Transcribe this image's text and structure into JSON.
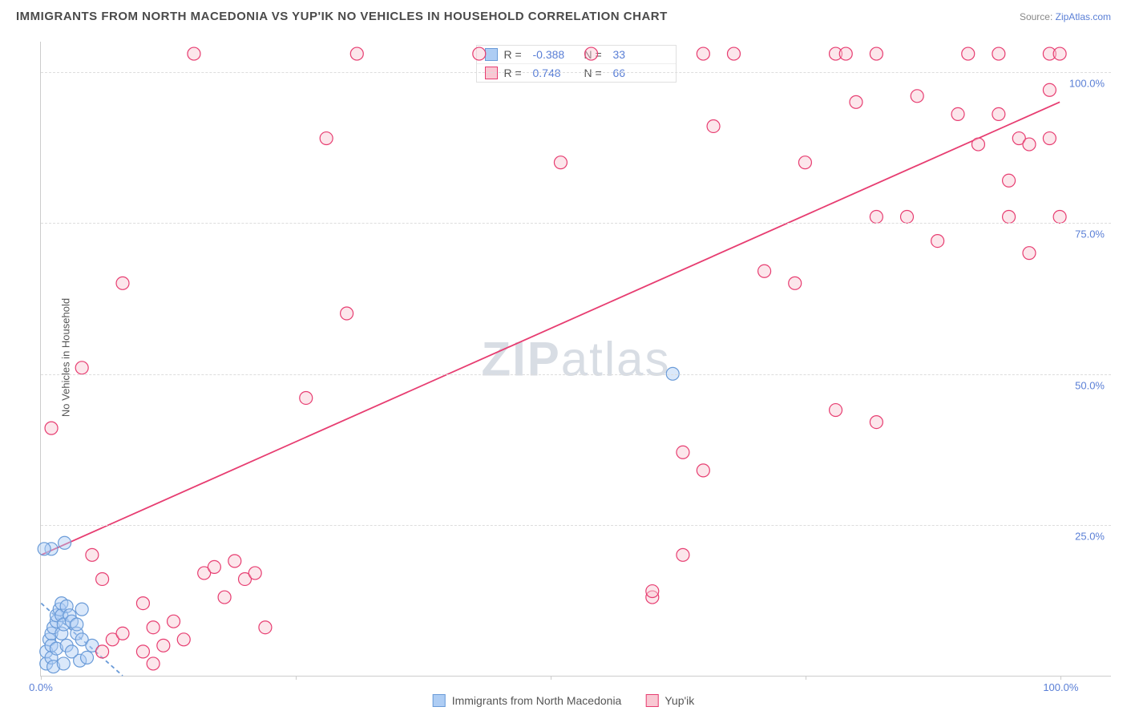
{
  "title": "IMMIGRANTS FROM NORTH MACEDONIA VS YUP'IK NO VEHICLES IN HOUSEHOLD CORRELATION CHART",
  "source_prefix": "Source: ",
  "source_link": "ZipAtlas.com",
  "y_axis_label": "No Vehicles in Household",
  "watermark_a": "ZIP",
  "watermark_b": "atlas",
  "chart": {
    "type": "scatter",
    "xlim": [
      0,
      105
    ],
    "ylim": [
      0,
      105
    ],
    "y_ticks": [
      {
        "v": 25,
        "label": "25.0%"
      },
      {
        "v": 50,
        "label": "50.0%"
      },
      {
        "v": 75,
        "label": "75.0%"
      },
      {
        "v": 100,
        "label": "100.0%"
      }
    ],
    "x_ticks": [
      {
        "v": 0,
        "label": "0.0%"
      },
      {
        "v": 25,
        "label": ""
      },
      {
        "v": 50,
        "label": ""
      },
      {
        "v": 75,
        "label": ""
      },
      {
        "v": 100,
        "label": "100.0%"
      }
    ],
    "background_color": "#ffffff",
    "grid_color": "#dddddd",
    "axis_color": "#cccccc",
    "tick_label_color": "#5a7fd6",
    "marker_radius": 8,
    "marker_stroke_width": 1.2,
    "trend_line_width": 1.8,
    "series": [
      {
        "key": "macedonia",
        "label": "Immigrants from North Macedonia",
        "fill": "#aecdf4",
        "fill_opacity": 0.45,
        "stroke": "#6a9bd8",
        "R": "-0.388",
        "N": "33",
        "trend": {
          "x1": 0,
          "y1": 12,
          "x2": 8,
          "y2": 0,
          "dashed": true
        },
        "points": [
          [
            0.5,
            2
          ],
          [
            0.5,
            4
          ],
          [
            0.8,
            6
          ],
          [
            1,
            3
          ],
          [
            1,
            5
          ],
          [
            1,
            7
          ],
          [
            1.2,
            8
          ],
          [
            1.2,
            1.5
          ],
          [
            1.5,
            9
          ],
          [
            1.5,
            10
          ],
          [
            1.5,
            4.5
          ],
          [
            1.8,
            11
          ],
          [
            2,
            10
          ],
          [
            2,
            7
          ],
          [
            2,
            12
          ],
          [
            2.2,
            2
          ],
          [
            2.2,
            8.5
          ],
          [
            2.5,
            11.5
          ],
          [
            2.5,
            5
          ],
          [
            2.8,
            10
          ],
          [
            3,
            9
          ],
          [
            3,
            4
          ],
          [
            3.5,
            7
          ],
          [
            3.5,
            8.5
          ],
          [
            3.8,
            2.5
          ],
          [
            4,
            6
          ],
          [
            4,
            11
          ],
          [
            4.5,
            3
          ],
          [
            5,
            5
          ],
          [
            1,
            21
          ],
          [
            0.3,
            21
          ],
          [
            2.3,
            22
          ],
          [
            62,
            50
          ]
        ]
      },
      {
        "key": "yupik",
        "label": "Yup'ik",
        "fill": "#f9c8d3",
        "fill_opacity": 0.45,
        "stroke": "#e73d71",
        "R": "0.748",
        "N": "66",
        "trend": {
          "x1": 0,
          "y1": 20,
          "x2": 100,
          "y2": 95,
          "dashed": false
        },
        "points": [
          [
            1,
            41
          ],
          [
            4,
            51
          ],
          [
            5,
            20
          ],
          [
            6,
            4
          ],
          [
            6,
            16
          ],
          [
            7,
            6
          ],
          [
            8,
            7
          ],
          [
            8,
            65
          ],
          [
            10,
            12
          ],
          [
            10,
            4
          ],
          [
            11,
            8
          ],
          [
            11,
            2
          ],
          [
            12,
            5
          ],
          [
            13,
            9
          ],
          [
            14,
            6
          ],
          [
            15,
            103
          ],
          [
            16,
            17
          ],
          [
            17,
            18
          ],
          [
            18,
            13
          ],
          [
            19,
            19
          ],
          [
            20,
            16
          ],
          [
            21,
            17
          ],
          [
            22,
            8
          ],
          [
            26,
            46
          ],
          [
            28,
            89
          ],
          [
            30,
            60
          ],
          [
            31,
            103
          ],
          [
            43,
            103
          ],
          [
            51,
            85
          ],
          [
            54,
            103
          ],
          [
            60,
            13
          ],
          [
            60,
            14
          ],
          [
            63,
            37
          ],
          [
            63,
            20
          ],
          [
            65,
            34
          ],
          [
            65,
            103
          ],
          [
            66,
            91
          ],
          [
            68,
            103
          ],
          [
            71,
            67
          ],
          [
            74,
            65
          ],
          [
            75,
            85
          ],
          [
            78,
            103
          ],
          [
            79,
            103
          ],
          [
            80,
            95
          ],
          [
            82,
            42
          ],
          [
            82,
            76
          ],
          [
            82,
            103
          ],
          [
            78,
            44
          ],
          [
            85,
            76
          ],
          [
            86,
            96
          ],
          [
            88,
            72
          ],
          [
            90,
            93
          ],
          [
            91,
            103
          ],
          [
            92,
            88
          ],
          [
            94,
            103
          ],
          [
            94,
            93
          ],
          [
            95,
            82
          ],
          [
            95,
            76
          ],
          [
            96,
            89
          ],
          [
            97,
            70
          ],
          [
            97,
            88
          ],
          [
            99,
            103
          ],
          [
            99,
            89
          ],
          [
            99,
            97
          ],
          [
            100,
            103
          ],
          [
            100,
            76
          ]
        ]
      }
    ]
  },
  "stats_legend": [
    {
      "series": "macedonia"
    },
    {
      "series": "yupik"
    }
  ]
}
